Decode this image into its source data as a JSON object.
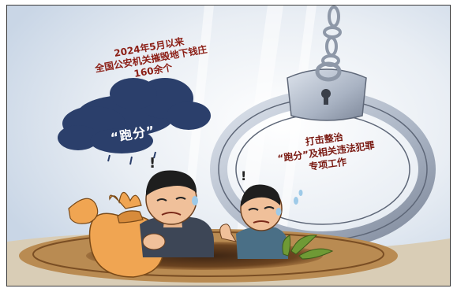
{
  "caption": {
    "top_line_1": "2024年5月以来",
    "top_line_2": "全国公安机关摧毁地下钱庄",
    "top_line_3": "160余个"
  },
  "cloud_label": "“跑分”",
  "cuff_text": {
    "line_1": "打击整治",
    "line_2": "“跑分”及相关违法犯罪",
    "line_3": "专项工作"
  },
  "colors": {
    "sky": "#d8e2ee",
    "cloud": "#2b3f6b",
    "caption_red": "#8b1d14",
    "money_bag": "#f0a552",
    "manhole": "#8a5a2c",
    "handcuff": "#aeb6c4",
    "plant": "#6f9a35"
  }
}
